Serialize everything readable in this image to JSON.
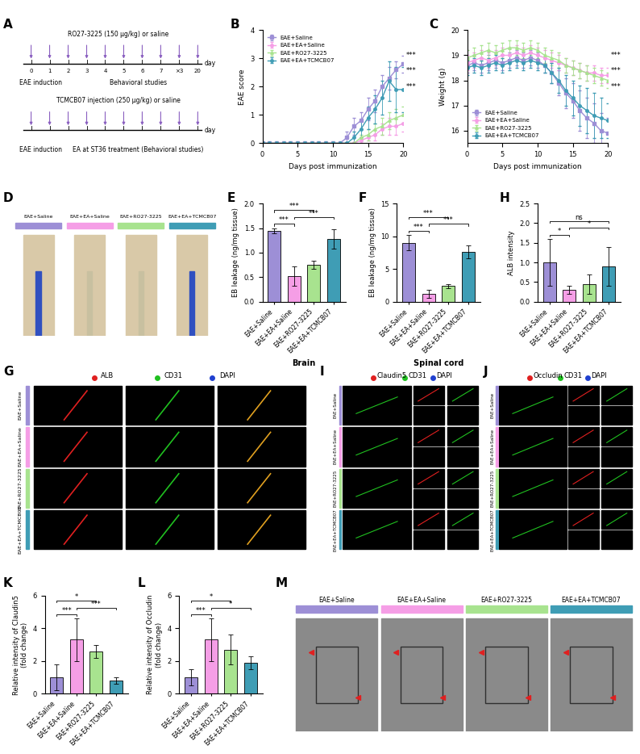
{
  "chart_data": [
    {
      "panel": "B",
      "type": "line",
      "xlabel": "Days post immunization",
      "ylabel": "EAE score",
      "x": [
        0,
        1,
        2,
        3,
        4,
        5,
        6,
        7,
        8,
        9,
        10,
        11,
        12,
        13,
        14,
        15,
        16,
        17,
        18,
        19,
        20
      ],
      "xlim": [
        0,
        20
      ],
      "xticks": [
        0,
        5,
        10,
        15,
        20
      ],
      "ylim": [
        0,
        4
      ],
      "yticks": [
        0,
        1,
        2,
        3,
        4
      ],
      "legend": "upper left",
      "line_style": "solid",
      "annotations": [
        "***",
        "***",
        "***"
      ],
      "series": [
        {
          "name": "EAE+Saline",
          "color": "#9d8fd6",
          "marker": "square",
          "values": [
            0,
            0,
            0,
            0,
            0,
            0,
            0,
            0,
            0,
            0,
            0,
            0,
            0.2,
            0.6,
            0.8,
            1.2,
            1.5,
            2.0,
            2.3,
            2.6,
            2.8
          ],
          "errors": [
            0,
            0,
            0,
            0,
            0,
            0,
            0,
            0,
            0,
            0,
            0,
            0,
            0.2,
            0.3,
            0.3,
            0.4,
            0.4,
            0.4,
            0.4,
            0.3,
            0.3
          ]
        },
        {
          "name": "EAE+EA+Saline",
          "color": "#f59ee6",
          "marker": "circle",
          "values": [
            0,
            0,
            0,
            0,
            0,
            0,
            0,
            0,
            0,
            0,
            0,
            0,
            0,
            0,
            0.1,
            0.2,
            0.3,
            0.5,
            0.6,
            0.6,
            0.7
          ],
          "errors": [
            0,
            0,
            0,
            0,
            0,
            0,
            0,
            0,
            0,
            0,
            0,
            0,
            0,
            0,
            0.1,
            0.1,
            0.2,
            0.2,
            0.3,
            0.3,
            0.3
          ]
        },
        {
          "name": "EAE+RO27-3225",
          "color": "#a8e38f",
          "marker": "triangle",
          "values": [
            0,
            0,
            0,
            0,
            0,
            0,
            0,
            0,
            0,
            0,
            0,
            0,
            0,
            0,
            0.2,
            0.3,
            0.5,
            0.6,
            0.8,
            0.9,
            1.0
          ],
          "errors": [
            0,
            0,
            0,
            0,
            0,
            0,
            0,
            0,
            0,
            0,
            0,
            0,
            0,
            0,
            0.1,
            0.2,
            0.2,
            0.3,
            0.3,
            0.3,
            0.3
          ]
        },
        {
          "name": "EAE+EA+TCMCB07",
          "color": "#3f9db5",
          "marker": "circle",
          "values": [
            0,
            0,
            0,
            0,
            0,
            0,
            0,
            0,
            0,
            0,
            0,
            0,
            0,
            0.2,
            0.5,
            0.9,
            1.2,
            1.6,
            2.2,
            1.9,
            1.9
          ],
          "errors": [
            0,
            0,
            0,
            0,
            0,
            0,
            0,
            0,
            0,
            0,
            0,
            0,
            0,
            0.2,
            0.3,
            0.4,
            0.5,
            0.6,
            0.7,
            0.8,
            0.8
          ]
        }
      ]
    },
    {
      "panel": "C",
      "type": "line",
      "xlabel": "Days post immunization",
      "ylabel": "Weight (g)",
      "x": [
        0,
        1,
        2,
        3,
        4,
        5,
        6,
        7,
        8,
        9,
        10,
        11,
        12,
        13,
        14,
        15,
        16,
        17,
        18,
        19,
        20
      ],
      "xlim": [
        0,
        20
      ],
      "xticks": [
        0,
        5,
        10,
        15,
        20
      ],
      "ylim": [
        15.5,
        20
      ],
      "yticks": [
        16,
        17,
        18,
        19,
        20
      ],
      "legend": "lower left",
      "line_style": "solid",
      "annotations": [
        "***",
        "***",
        "***"
      ],
      "series": [
        {
          "name": "EAE+Saline",
          "color": "#9d8fd6",
          "marker": "square",
          "values": [
            18.6,
            18.7,
            18.6,
            18.7,
            18.8,
            18.7,
            18.8,
            18.9,
            18.8,
            18.9,
            18.8,
            18.6,
            18.3,
            17.9,
            17.5,
            17.2,
            16.8,
            16.5,
            16.3,
            16.0,
            15.9
          ],
          "errors": [
            0.3,
            0.3,
            0.3,
            0.3,
            0.3,
            0.3,
            0.3,
            0.3,
            0.3,
            0.3,
            0.3,
            0.3,
            0.4,
            0.5,
            0.6,
            0.7,
            0.8,
            0.8,
            0.8,
            0.7,
            0.6
          ]
        },
        {
          "name": "EAE+EA+Saline",
          "color": "#f59ee6",
          "marker": "circle",
          "values": [
            18.7,
            18.8,
            18.9,
            18.8,
            18.9,
            19.0,
            19.0,
            19.1,
            19.0,
            19.1,
            19.0,
            18.9,
            18.8,
            18.7,
            18.6,
            18.5,
            18.4,
            18.3,
            18.3,
            18.2,
            18.2
          ],
          "errors": [
            0.3,
            0.3,
            0.3,
            0.3,
            0.3,
            0.3,
            0.3,
            0.3,
            0.3,
            0.3,
            0.3,
            0.3,
            0.3,
            0.3,
            0.3,
            0.3,
            0.3,
            0.3,
            0.3,
            0.3,
            0.3
          ]
        },
        {
          "name": "EAE+RO27-3225",
          "color": "#a8e38f",
          "marker": "triangle",
          "values": [
            18.9,
            19.0,
            19.1,
            19.2,
            19.1,
            19.2,
            19.3,
            19.3,
            19.2,
            19.3,
            19.2,
            19.0,
            18.9,
            18.8,
            18.6,
            18.5,
            18.4,
            18.3,
            18.2,
            18.1,
            18.0
          ],
          "errors": [
            0.3,
            0.3,
            0.3,
            0.3,
            0.3,
            0.3,
            0.3,
            0.3,
            0.3,
            0.3,
            0.3,
            0.3,
            0.3,
            0.3,
            0.3,
            0.3,
            0.3,
            0.3,
            0.3,
            0.3,
            0.3
          ]
        },
        {
          "name": "EAE+EA+TCMCB07",
          "color": "#3f9db5",
          "marker": "circle",
          "values": [
            18.5,
            18.6,
            18.5,
            18.6,
            18.7,
            18.6,
            18.7,
            18.8,
            18.7,
            18.8,
            18.7,
            18.6,
            18.3,
            18.0,
            17.6,
            17.3,
            17.0,
            16.8,
            16.6,
            16.5,
            16.4
          ],
          "errors": [
            0.3,
            0.3,
            0.3,
            0.3,
            0.3,
            0.3,
            0.3,
            0.3,
            0.3,
            0.3,
            0.3,
            0.3,
            0.4,
            0.5,
            0.6,
            0.7,
            0.8,
            0.9,
            0.9,
            0.8,
            0.7
          ]
        }
      ]
    },
    {
      "panel": "E",
      "type": "bar",
      "xlabel": "Brain",
      "ylabel": "EB leakage (ng/mg tissue)",
      "categories": [
        "EAE+Saline",
        "EAE+EA+Saline",
        "EAE+RO27-3225",
        "EAE+EA+TCMCB07"
      ],
      "values": [
        1.45,
        0.52,
        0.75,
        1.28
      ],
      "errors": [
        0.05,
        0.2,
        0.08,
        0.2
      ],
      "colors": [
        "#9d8fd6",
        "#f59ee6",
        "#a8e38f",
        "#3f9db5"
      ],
      "ylim": [
        0.0,
        2.0
      ],
      "yticks": [
        0.0,
        0.5,
        1.0,
        1.5,
        2.0
      ],
      "significance": [
        {
          "from": 0,
          "to": 1,
          "text": "***"
        },
        {
          "from": 1,
          "to": 3,
          "text": "***"
        },
        {
          "from": 0,
          "to": 2,
          "text": "***"
        }
      ]
    },
    {
      "panel": "F",
      "type": "bar",
      "xlabel": "Spinal cord",
      "ylabel": "EB leakage (ng/mg tissue)",
      "categories": [
        "EAE+Saline",
        "EAE+EA+Saline",
        "EAE+RO27-3225",
        "EAE+EA+TCMCB07"
      ],
      "values": [
        9.0,
        1.2,
        2.4,
        7.6
      ],
      "errors": [
        1.2,
        0.6,
        0.3,
        1.0
      ],
      "colors": [
        "#9d8fd6",
        "#f59ee6",
        "#a8e38f",
        "#3f9db5"
      ],
      "ylim": [
        0,
        15
      ],
      "yticks": [
        0,
        5,
        10,
        15
      ],
      "significance": [
        {
          "from": 0,
          "to": 1,
          "text": "***"
        },
        {
          "from": 1,
          "to": 3,
          "text": "***"
        },
        {
          "from": 0,
          "to": 2,
          "text": "***"
        }
      ]
    },
    {
      "panel": "H",
      "type": "bar",
      "ylabel": "ALB intensity",
      "categories": [
        "EAE+Saline",
        "EAE+EA+Saline",
        "EAE+RO27-3225",
        "EAE+EA+TCMCB07"
      ],
      "values": [
        1.0,
        0.3,
        0.45,
        0.9
      ],
      "errors": [
        0.6,
        0.1,
        0.25,
        0.5
      ],
      "colors": [
        "#9d8fd6",
        "#f59ee6",
        "#a8e38f",
        "#3f9db5"
      ],
      "ylim": [
        0.0,
        2.5
      ],
      "yticks": [
        0.0,
        0.5,
        1.0,
        1.5,
        2.0,
        2.5
      ],
      "significance": [
        {
          "from": 0,
          "to": 1,
          "text": "*"
        },
        {
          "from": 1,
          "to": 3,
          "text": "*"
        },
        {
          "from": 0,
          "to": 3,
          "text": "ns"
        }
      ]
    },
    {
      "panel": "K",
      "type": "bar",
      "ylabel": "Relative intensity of Claudin5\n(fold change)",
      "categories": [
        "EAE+Saline",
        "EAE+EA+Saline",
        "EAE+RO27-3225",
        "EAE+EA+TCMCB07"
      ],
      "values": [
        1.0,
        3.3,
        2.6,
        0.8
      ],
      "errors": [
        0.8,
        1.3,
        0.4,
        0.2
      ],
      "colors": [
        "#9d8fd6",
        "#f59ee6",
        "#a8e38f",
        "#3f9db5"
      ],
      "ylim": [
        0,
        6
      ],
      "yticks": [
        0,
        2,
        4,
        6
      ],
      "significance": [
        {
          "from": 0,
          "to": 1,
          "text": "***"
        },
        {
          "from": 1,
          "to": 3,
          "text": "***"
        },
        {
          "from": 0,
          "to": 2,
          "text": "*"
        }
      ]
    },
    {
      "panel": "L",
      "type": "bar",
      "ylabel": "Relative intensity of Occludin\n(fold change)",
      "categories": [
        "EAE+Saline",
        "EAE+EA+Saline",
        "EAE+RO27-3225",
        "EAE+EA+TCMCB07"
      ],
      "values": [
        1.0,
        3.3,
        2.7,
        1.9
      ],
      "errors": [
        0.5,
        1.3,
        0.9,
        0.4
      ],
      "colors": [
        "#9d8fd6",
        "#f59ee6",
        "#a8e38f",
        "#3f9db5"
      ],
      "ylim": [
        0,
        6
      ],
      "yticks": [
        0,
        2,
        4,
        6
      ],
      "significance": [
        {
          "from": 0,
          "to": 1,
          "text": "***"
        },
        {
          "from": 1,
          "to": 3,
          "text": "*"
        },
        {
          "from": 0,
          "to": 2,
          "text": "*"
        }
      ]
    }
  ],
  "schematic": {
    "panel": "A",
    "start_label": "EAE induction",
    "unit": "day",
    "days": [
      "0",
      "1",
      "2",
      "3",
      "4",
      "5",
      "6",
      "7",
      "×3",
      "20"
    ],
    "timelines": [
      {
        "drug": "RO27-3225 (150 μg/kg) or saline",
        "note": "Behavioral studies",
        "color": "#8a5fc0"
      },
      {
        "drug": "TCMCB07 injection (250 μg/kg) or saline",
        "note": "EA at ST36 treatment (Behavioral studies)",
        "color": "#8a5fc0"
      }
    ]
  },
  "images": {
    "groups": [
      "EAE+Saline",
      "EAE+EA+Saline",
      "EAE+RO27-3225",
      "EAE+EA+TCMCB07"
    ],
    "group_colors": [
      "#9d8fd6",
      "#f59ee6",
      "#a8e38f",
      "#3f9db5"
    ],
    "D": {
      "panel": "D"
    },
    "G": {
      "panel": "G",
      "channels": [
        "ALB",
        "CD31",
        "DAPI"
      ],
      "colors": [
        "#e02020",
        "#20c020",
        "#2040d0"
      ]
    },
    "I": {
      "panel": "I",
      "channels": [
        "Claudin5",
        "CD31",
        "DAPI"
      ],
      "colors": [
        "#e02020",
        "#20c020",
        "#2040d0"
      ]
    },
    "J": {
      "panel": "J",
      "channels": [
        "Occludin",
        "CD31",
        "DAPI"
      ],
      "colors": [
        "#e02020",
        "#20c020",
        "#2040d0"
      ]
    },
    "M": {
      "panel": "M"
    }
  }
}
